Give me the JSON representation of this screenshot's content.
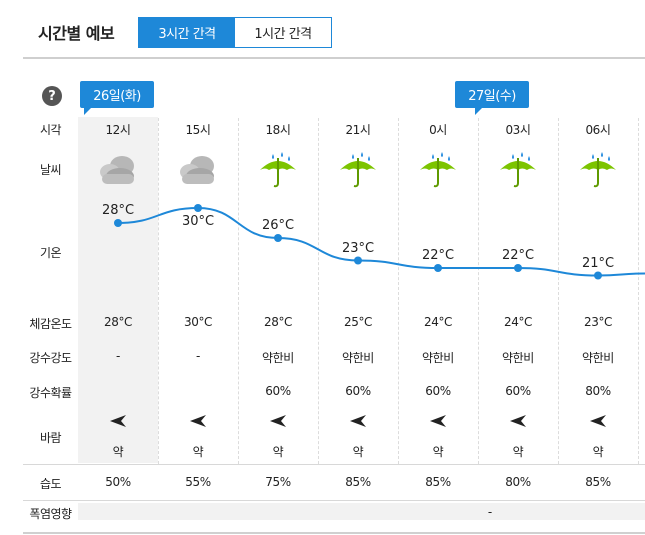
{
  "header": {
    "title": "시간별 예보",
    "tabs": [
      {
        "label": "3시간 간격",
        "active": true
      },
      {
        "label": "1시간 간격",
        "active": false
      }
    ]
  },
  "help_icon": "?",
  "days": [
    {
      "label": "26일(화)"
    },
    {
      "label": "27일(수)"
    }
  ],
  "row_labels": {
    "time": "시각",
    "weather": "날씨",
    "temp": "기온",
    "feels": "체감온도",
    "precip_intensity": "강수강도",
    "precip_prob": "강수확률",
    "wind": "바람",
    "humidity": "습도",
    "heat": "폭염영향"
  },
  "columns": [
    {
      "time": "12시",
      "icon": "cloudy-icon",
      "temp": "28°C",
      "temp_value": 28,
      "feels": "28°C",
      "intensity": "-",
      "prob": "",
      "wind": "약",
      "humidity": "50%"
    },
    {
      "time": "15시",
      "icon": "cloudy-icon",
      "temp": "30°C",
      "temp_value": 30,
      "feels": "30°C",
      "intensity": "-",
      "prob": "",
      "wind": "약",
      "humidity": "55%"
    },
    {
      "time": "18시",
      "icon": "rain-umbrella-icon",
      "temp": "26°C",
      "temp_value": 26,
      "feels": "28°C",
      "intensity": "약한비",
      "prob": "60%",
      "wind": "약",
      "humidity": "75%"
    },
    {
      "time": "21시",
      "icon": "rain-umbrella-icon",
      "temp": "23°C",
      "temp_value": 23,
      "feels": "25°C",
      "intensity": "약한비",
      "prob": "60%",
      "wind": "약",
      "humidity": "85%"
    },
    {
      "time": "0시",
      "icon": "rain-umbrella-icon",
      "temp": "22°C",
      "temp_value": 22,
      "feels": "24°C",
      "intensity": "약한비",
      "prob": "60%",
      "wind": "약",
      "humidity": "85%"
    },
    {
      "time": "03시",
      "icon": "rain-umbrella-icon",
      "temp": "22°C",
      "temp_value": 22,
      "feels": "24°C",
      "intensity": "약한비",
      "prob": "60%",
      "wind": "약",
      "humidity": "80%"
    },
    {
      "time": "06시",
      "icon": "rain-umbrella-icon",
      "temp": "21°C",
      "temp_value": 21,
      "feels": "23°C",
      "intensity": "약한비",
      "prob": "80%",
      "wind": "약",
      "humidity": "85%"
    }
  ],
  "heat_value": "-",
  "colors": {
    "accent": "#1e88d8",
    "line": "#1e88d8",
    "umbrella": "#7cc400",
    "cloud": "#a9a9a9"
  }
}
